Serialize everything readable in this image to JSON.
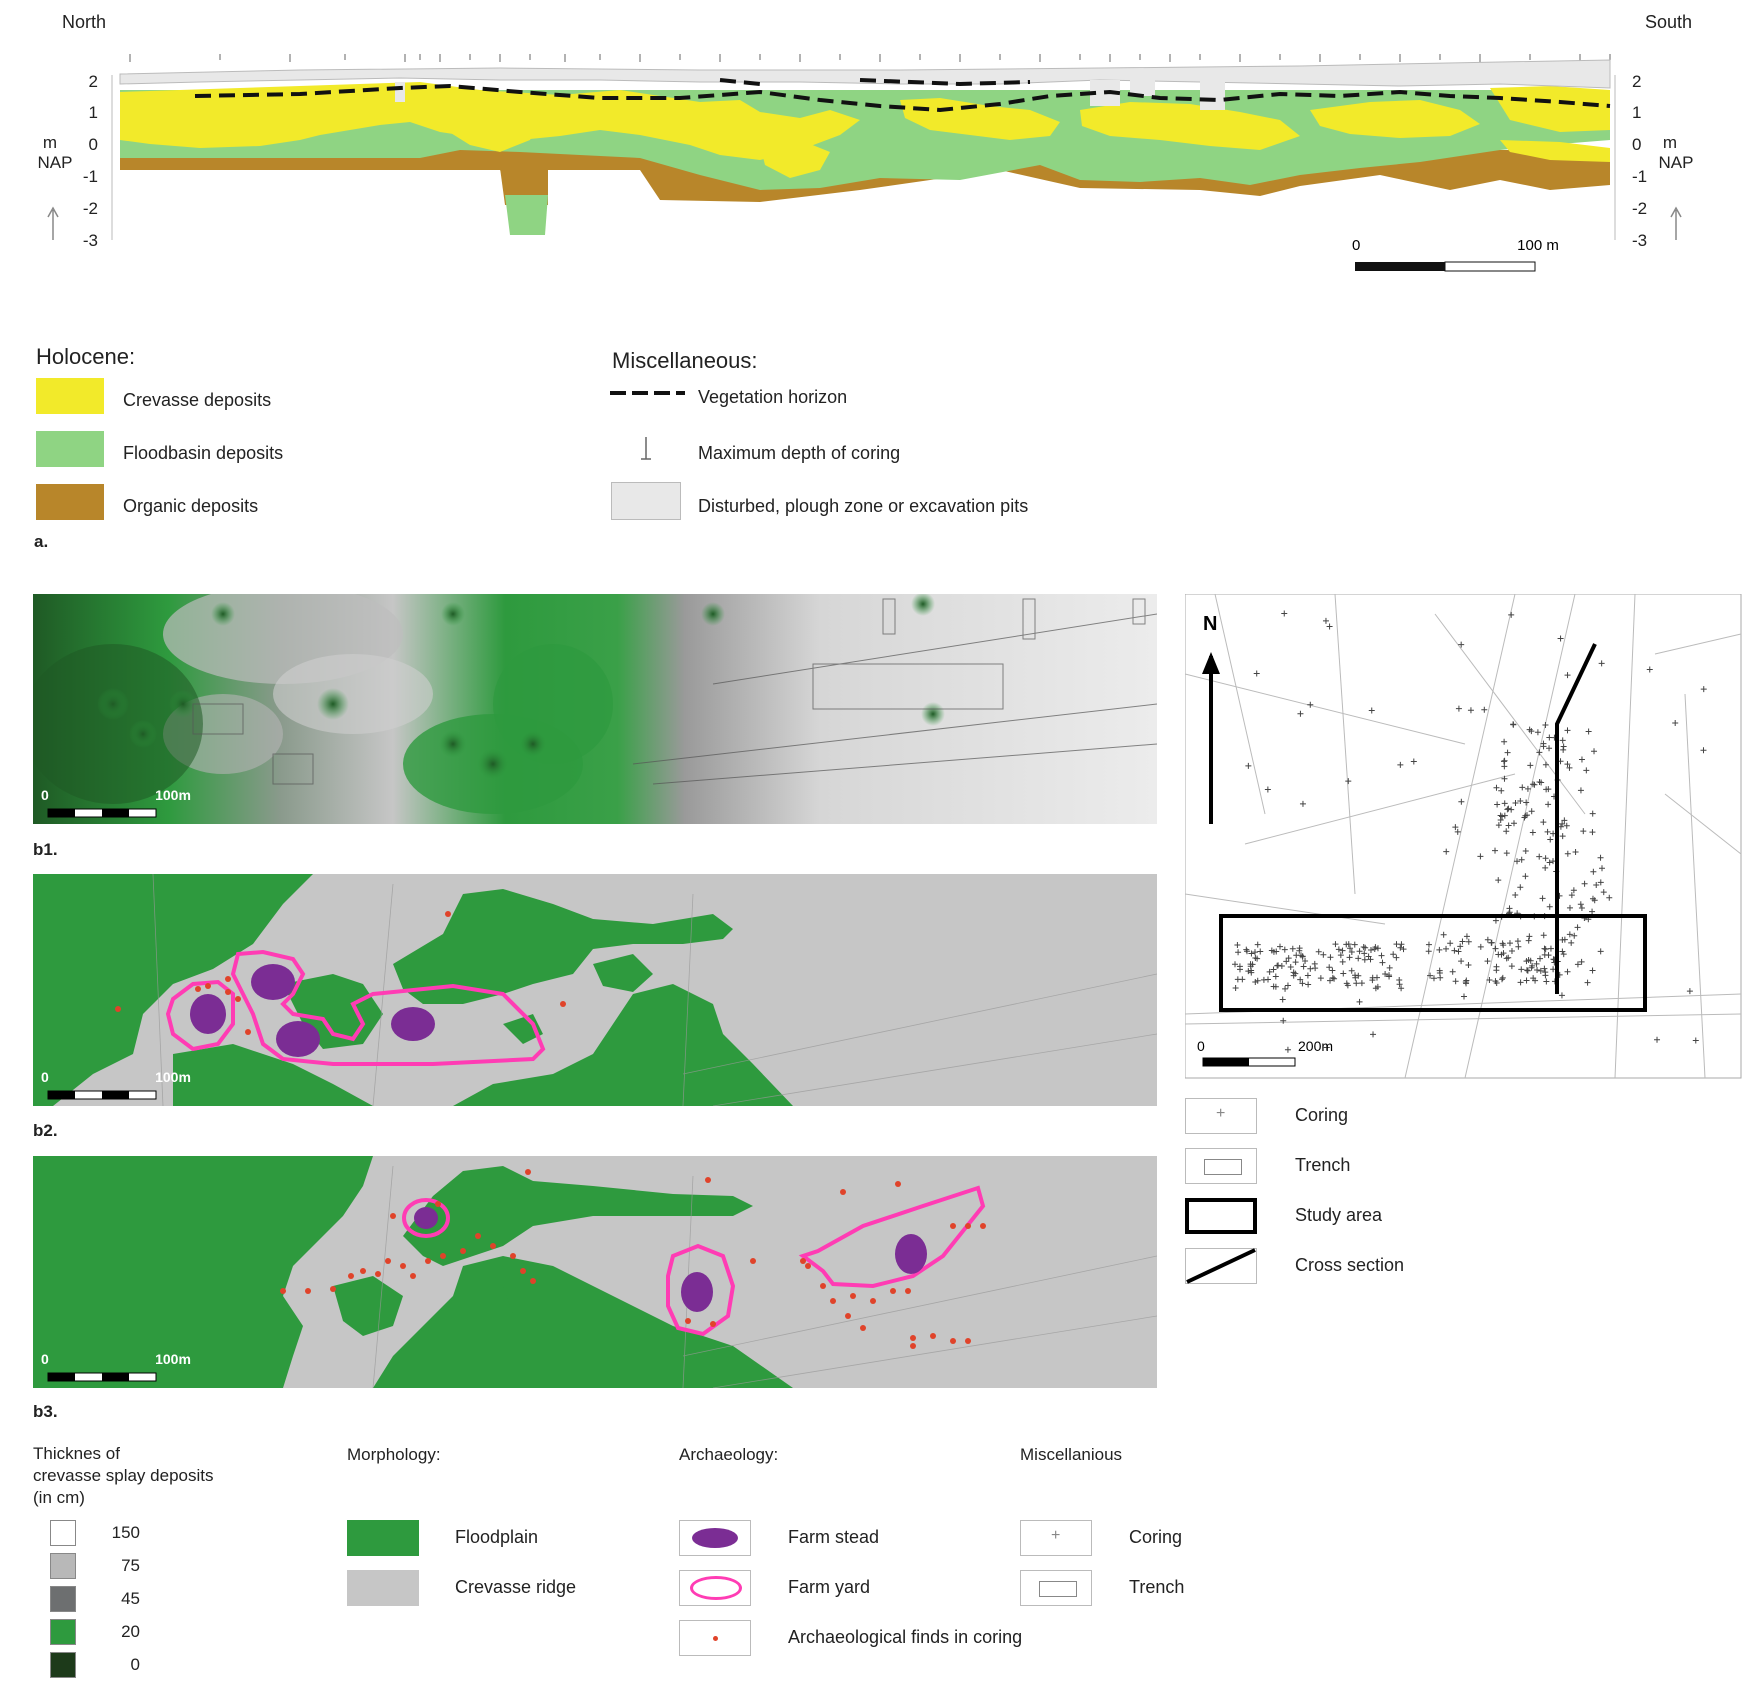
{
  "cross_section": {
    "north_label": "North",
    "south_label": "South",
    "y_ticks_left": [
      "2",
      "1",
      "0",
      "-1",
      "-2",
      "-3"
    ],
    "y_ticks_right": [
      "2",
      "1",
      "0",
      "-1",
      "-2",
      "-3"
    ],
    "unit_m": "m",
    "unit_nap": "NAP",
    "scale_start": "0",
    "scale_end": "100 m",
    "colors": {
      "crevasse": "#f2ea2a",
      "floodbasin": "#8fd483",
      "organic": "#b8862a",
      "disturbed": "#e8e8e8"
    }
  },
  "legend_a": {
    "holocene_title": "Holocene:",
    "crevasse_label": "Crevasse deposits",
    "floodbasin_label": "Floodbasin deposits",
    "organic_label": "Organic deposits",
    "misc_title": "Miscellaneous:",
    "vegetation_label": "Vegetation horizon",
    "coring_depth_label": "Maximum depth of coring",
    "disturbed_label": "Disturbed, plough zone or excavation pits",
    "panel": "a."
  },
  "map_b1": {
    "panel": "b1.",
    "scale_start": "0",
    "scale_end": "100m"
  },
  "map_b2": {
    "panel": "b2.",
    "scale_start": "0",
    "scale_end": "100m"
  },
  "map_b3": {
    "panel": "b3.",
    "scale_start": "0",
    "scale_end": "100m"
  },
  "overview_map": {
    "north": "N",
    "scale_start": "0",
    "scale_end": "200m",
    "legend": {
      "coring": "Coring",
      "trench": "Trench",
      "study_area": "Study area",
      "cross_section": "Cross section"
    }
  },
  "legend_b": {
    "thickness_title_1": "Thicknes of",
    "thickness_title_2": "crevasse splay deposits",
    "thickness_title_3": "(in cm)",
    "thickness_values": [
      "150",
      "75",
      "45",
      "20",
      "0"
    ],
    "thickness_colors": [
      "#ffffff",
      "#b8b8b8",
      "#6d6f70",
      "#2e9a3e",
      "#1d3a1a"
    ],
    "morphology_title": "Morphology:",
    "floodplain_label": "Floodplain",
    "crevasse_ridge_label": "Crevasse ridge",
    "archaeology_title": "Archaeology:",
    "farm_stead_label": "Farm stead",
    "farm_yard_label": "Farm yard",
    "finds_label": "Archaeological finds in coring",
    "misc_title": "Miscellanious",
    "coring_label": "Coring",
    "trench_label": "Trench",
    "colors": {
      "floodplain": "#2e9a3e",
      "crevasse_ridge": "#c6c6c6",
      "farm_stead": "#7b2d94",
      "farm_yard": "#ff3cb4",
      "finds": "#e0432a"
    }
  }
}
